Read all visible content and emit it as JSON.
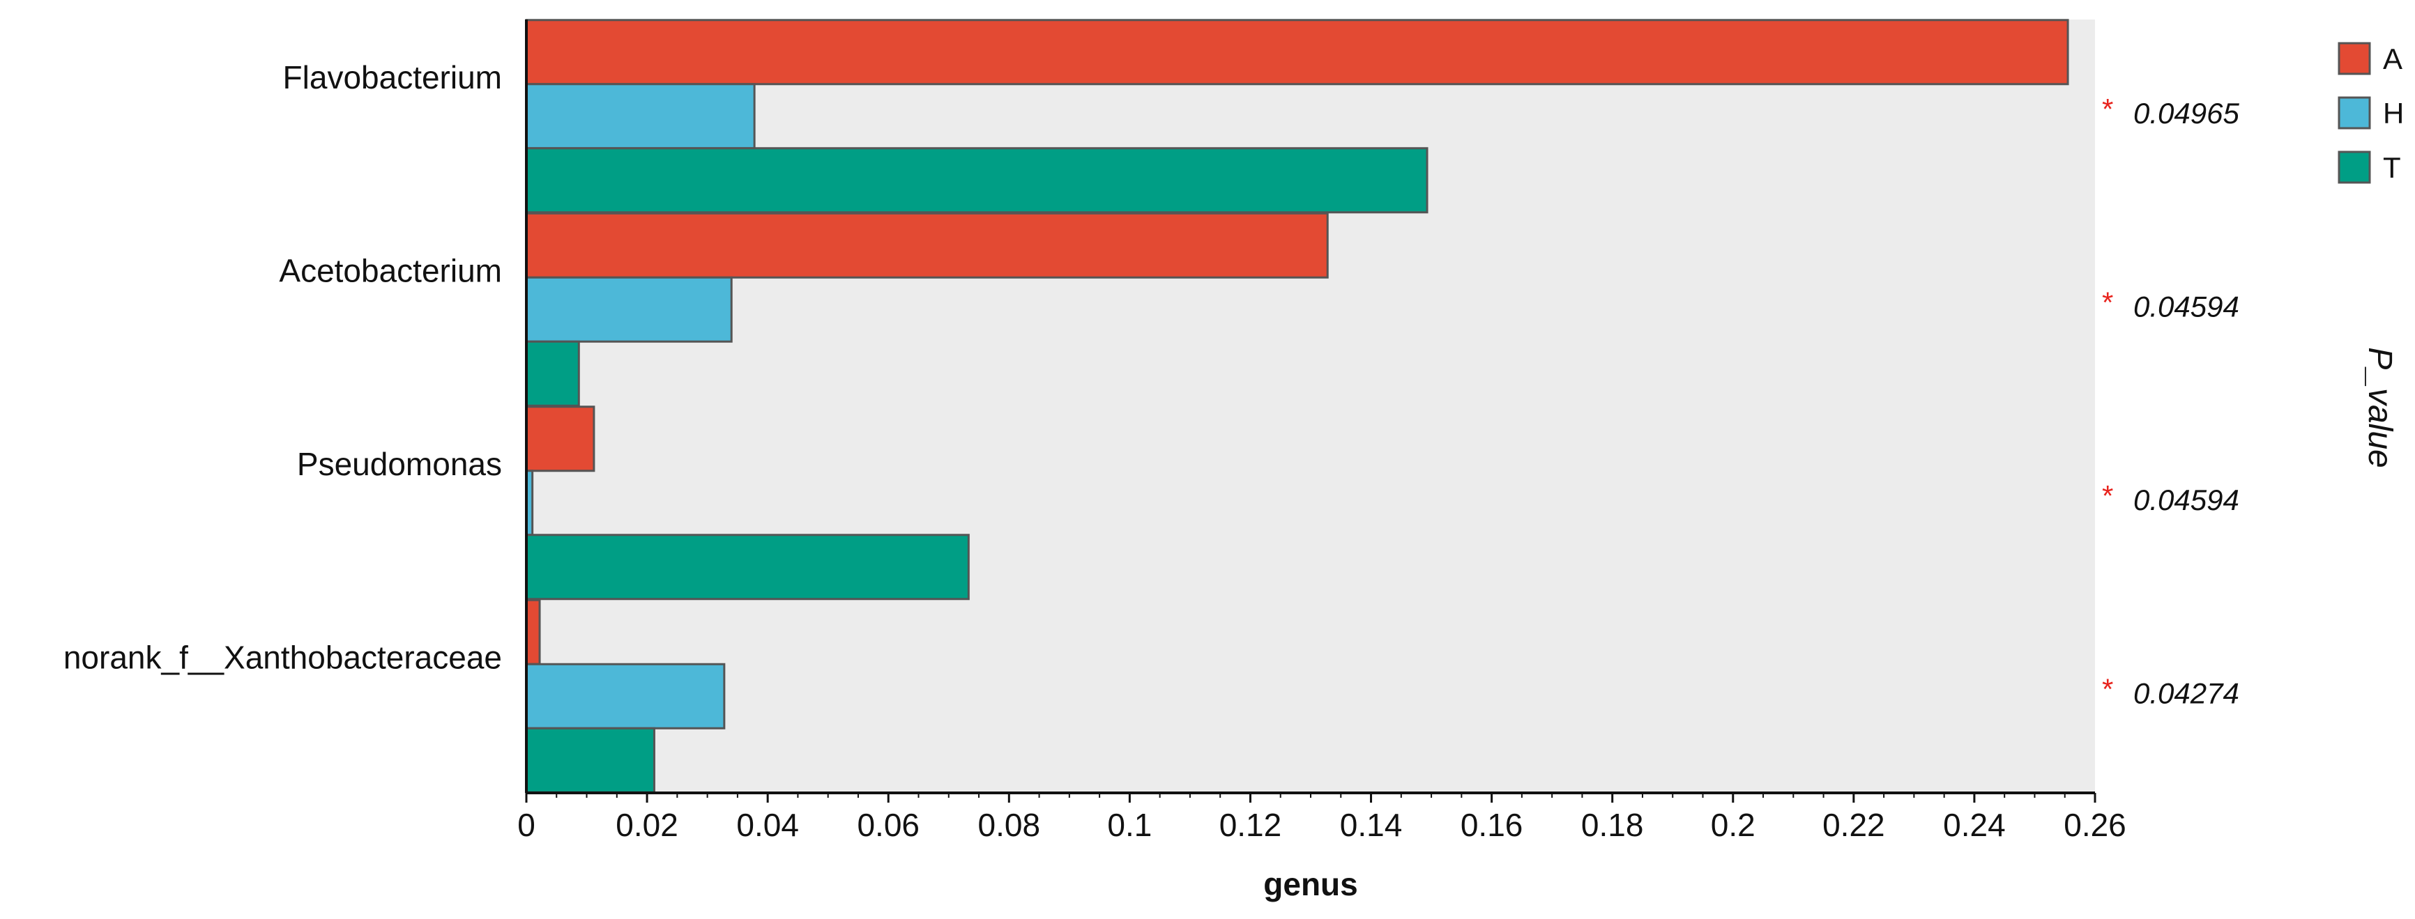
{
  "chart_data": {
    "type": "bar",
    "orientation": "horizontal",
    "categories": [
      "Flavobacterium",
      "Acetobacterium",
      "Pseudomonas",
      "norank_f__Xanthobacteraceae"
    ],
    "series": [
      {
        "name": "A",
        "color": "#e34a33",
        "values": [
          0.2555,
          0.1328,
          0.0112,
          0.0022
        ]
      },
      {
        "name": "H",
        "color": "#4db8d8",
        "values": [
          0.0378,
          0.034,
          0.001,
          0.0328
        ]
      },
      {
        "name": "T",
        "color": "#009e85",
        "values": [
          0.1493,
          0.0087,
          0.0733,
          0.0212
        ]
      }
    ],
    "xlim": [
      0,
      0.26
    ],
    "xticks": [
      "0",
      "0.02",
      "0.04",
      "0.06",
      "0.08",
      "0.1",
      "0.12",
      "0.14",
      "0.16",
      "0.18",
      "0.2",
      "0.22",
      "0.24",
      "0.26"
    ],
    "xlabel": "genus",
    "ylabel": "",
    "right_axis_title": "P_value",
    "p_values": [
      "0.04965",
      "0.04594",
      "0.04594",
      "0.04274"
    ],
    "significance_marks": [
      "*",
      "*",
      "*",
      "*"
    ],
    "legend_placement": "top-right",
    "plot_background": "#ececec",
    "grid": false
  }
}
